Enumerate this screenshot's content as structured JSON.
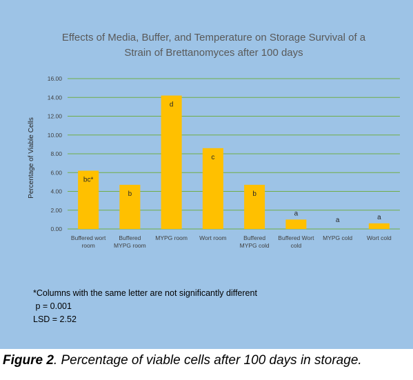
{
  "chart_data": {
    "type": "bar",
    "title_lines": [
      "Effects of Media, Buffer, and Temperature on Storage Survival of a",
      "Strain of Brettanomyces after 100 days"
    ],
    "ylabel": "Percentage of Viable Cells",
    "xlabel": "",
    "ylim": [
      0,
      16
    ],
    "yticks": [
      "0.00",
      "2.00",
      "4.00",
      "6.00",
      "8.00",
      "10.00",
      "12.00",
      "14.00",
      "16.00"
    ],
    "grid": true,
    "bar_color": "#ffc000",
    "categories": [
      [
        "Buffered wort",
        "room"
      ],
      [
        "Buffered",
        "MYPG room"
      ],
      [
        "MYPG room"
      ],
      [
        "Wort room"
      ],
      [
        "Buffered",
        "MYPG cold"
      ],
      [
        "Buffered Wort",
        "cold"
      ],
      [
        "MYPG cold"
      ],
      [
        "Wort cold"
      ]
    ],
    "values": [
      6.2,
      4.7,
      14.2,
      8.6,
      4.7,
      1.0,
      0.0,
      0.6
    ],
    "significance_letters": [
      "bc*",
      "b",
      "d",
      "c",
      "b",
      "a",
      "a",
      "a"
    ]
  },
  "notes": [
    "*Columns with the same letter are not significantly different",
    " p = 0.001",
    "LSD = 2.52"
  ],
  "caption": {
    "label": "Figure 2",
    "text": ".  Percentage of viable cells after 100 days in storage."
  },
  "colors": {
    "background": "#9dc3e6",
    "gridline": "#70ad47",
    "bar": "#ffc000"
  }
}
